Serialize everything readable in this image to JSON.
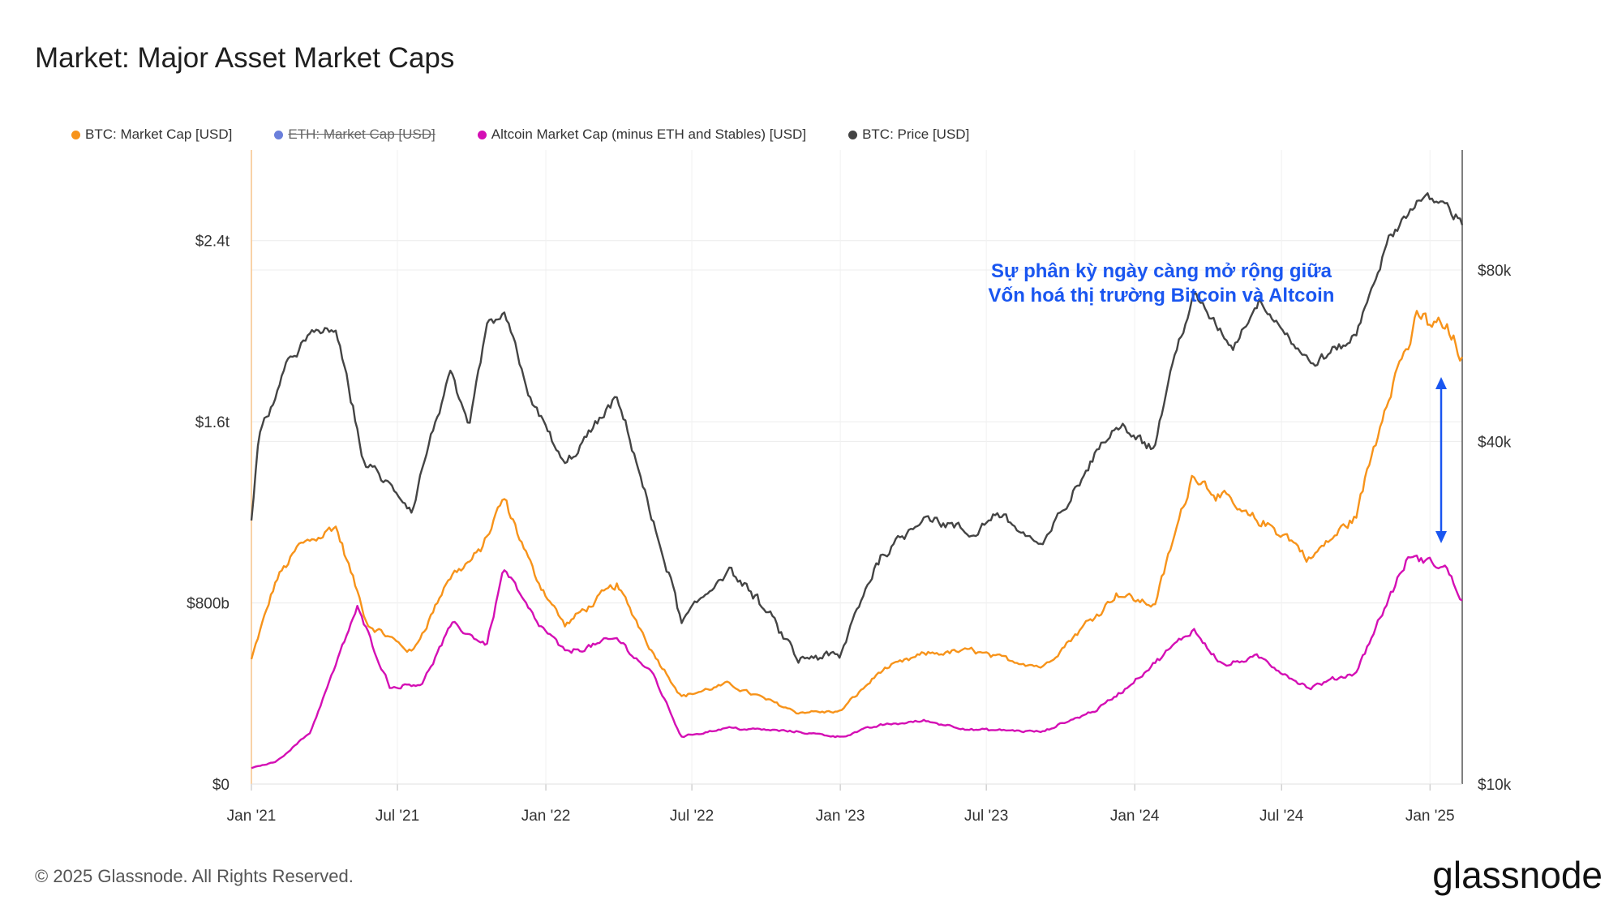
{
  "title": "Market: Major Asset Market Caps",
  "footer": "© 2025 Glassnode. All Rights Reserved.",
  "brand": "glassnode",
  "legend": [
    {
      "label": "BTC: Market Cap [USD]",
      "color": "#f7931a",
      "disabled": false
    },
    {
      "label": "ETH: Market Cap [USD]",
      "color": "#6a7fdb",
      "disabled": true
    },
    {
      "label": "Altcoin Market Cap (minus ETH and Stables) [USD]",
      "color": "#d40fb4",
      "disabled": false
    },
    {
      "label": "BTC: Price [USD]",
      "color": "#444444",
      "disabled": false
    }
  ],
  "annotation": {
    "line1": "Sự phân kỳ ngày càng mở rộng giữa",
    "line2": "Vốn hoá thị trường Bitcoin và Altcoin",
    "color": "#1a56f0"
  },
  "chart_data": {
    "type": "line",
    "x_ticks": [
      "Jan '21",
      "Jul '21",
      "Jan '22",
      "Jul '22",
      "Jan '23",
      "Jul '23",
      "Jan '24",
      "Jul '24",
      "Jan '25"
    ],
    "x_range": [
      "2021-01-01",
      "2025-02-10"
    ],
    "y_left": {
      "ticks": [
        "$0",
        "$800b",
        "$1.6t",
        "$2.4t"
      ],
      "tick_values": [
        0,
        800,
        1600,
        2400
      ],
      "range": [
        0,
        2800
      ],
      "unit": "billion USD"
    },
    "y_right": {
      "ticks": [
        "$10k",
        "$40k",
        "$80k"
      ],
      "tick_values": [
        10000,
        40000,
        80000
      ],
      "scale": "log",
      "range": [
        10000,
        130000
      ]
    },
    "grid": true,
    "series": [
      {
        "name": "BTC: Market Cap [USD]",
        "axis": "left",
        "color": "#f7931a",
        "x": [
          "2021-01-01",
          "2021-02-01",
          "2021-03-01",
          "2021-04-15",
          "2021-05-25",
          "2021-07-20",
          "2021-09-01",
          "2021-10-10",
          "2021-11-10",
          "2021-12-15",
          "2022-01-25",
          "2022-03-30",
          "2022-05-15",
          "2022-06-18",
          "2022-08-15",
          "2022-11-10",
          "2023-01-01",
          "2023-02-20",
          "2023-04-15",
          "2023-06-15",
          "2023-07-15",
          "2023-09-10",
          "2023-10-25",
          "2023-12-10",
          "2024-01-25",
          "2024-03-14",
          "2024-05-10",
          "2024-07-05",
          "2024-08-05",
          "2024-10-01",
          "2024-11-12",
          "2024-12-17",
          "2025-01-20",
          "2025-02-10"
        ],
        "y": [
          550,
          900,
          1050,
          1150,
          700,
          580,
          900,
          1020,
          1250,
          940,
          700,
          880,
          580,
          390,
          440,
          320,
          320,
          500,
          570,
          590,
          560,
          520,
          680,
          850,
          790,
          1380,
          1200,
          1100,
          990,
          1180,
          1750,
          2050,
          2020,
          1880
        ]
      },
      {
        "name": "Altcoin Market Cap (minus ETH and Stables) [USD]",
        "axis": "left",
        "color": "#d40fb4",
        "x": [
          "2021-01-01",
          "2021-02-01",
          "2021-03-15",
          "2021-05-12",
          "2021-06-22",
          "2021-08-01",
          "2021-09-06",
          "2021-10-20",
          "2021-11-10",
          "2021-12-20",
          "2022-01-25",
          "2022-03-30",
          "2022-05-15",
          "2022-06-18",
          "2022-08-15",
          "2022-11-10",
          "2023-01-01",
          "2023-02-20",
          "2023-04-15",
          "2023-06-15",
          "2023-09-10",
          "2023-11-15",
          "2023-12-20",
          "2024-03-14",
          "2024-04-20",
          "2024-06-01",
          "2024-08-05",
          "2024-10-01",
          "2024-11-12",
          "2024-12-07",
          "2025-01-20",
          "2025-02-10"
        ],
        "y": [
          70,
          100,
          230,
          780,
          430,
          450,
          700,
          620,
          960,
          720,
          580,
          640,
          480,
          210,
          250,
          230,
          210,
          260,
          280,
          240,
          230,
          330,
          420,
          680,
          530,
          560,
          420,
          490,
          830,
          1000,
          950,
          810
        ]
      },
      {
        "name": "BTC: Price [USD]",
        "axis": "right",
        "color": "#444444",
        "x": [
          "2021-01-01",
          "2021-01-10",
          "2021-02-20",
          "2021-03-14",
          "2021-04-14",
          "2021-05-19",
          "2021-07-20",
          "2021-09-06",
          "2021-09-28",
          "2021-10-20",
          "2021-11-10",
          "2021-12-15",
          "2022-01-24",
          "2022-03-30",
          "2022-05-12",
          "2022-06-18",
          "2022-08-15",
          "2022-11-10",
          "2023-01-01",
          "2023-02-20",
          "2023-04-15",
          "2023-06-15",
          "2023-07-15",
          "2023-09-10",
          "2023-10-25",
          "2023-12-10",
          "2024-01-25",
          "2024-03-14",
          "2024-05-01",
          "2024-06-05",
          "2024-08-05",
          "2024-10-01",
          "2024-11-12",
          "2024-12-17",
          "2025-01-20",
          "2025-02-10"
        ],
        "y": [
          29000,
          40000,
          57000,
          61000,
          63000,
          37000,
          30000,
          52000,
          41000,
          63000,
          67000,
          47000,
          36000,
          47000,
          29000,
          19000,
          24000,
          16500,
          16600,
          25000,
          30000,
          27000,
          30000,
          26000,
          34000,
          43000,
          39000,
          72000,
          58000,
          71000,
          54000,
          61000,
          90000,
          106000,
          105000,
          97000
        ]
      }
    ]
  }
}
